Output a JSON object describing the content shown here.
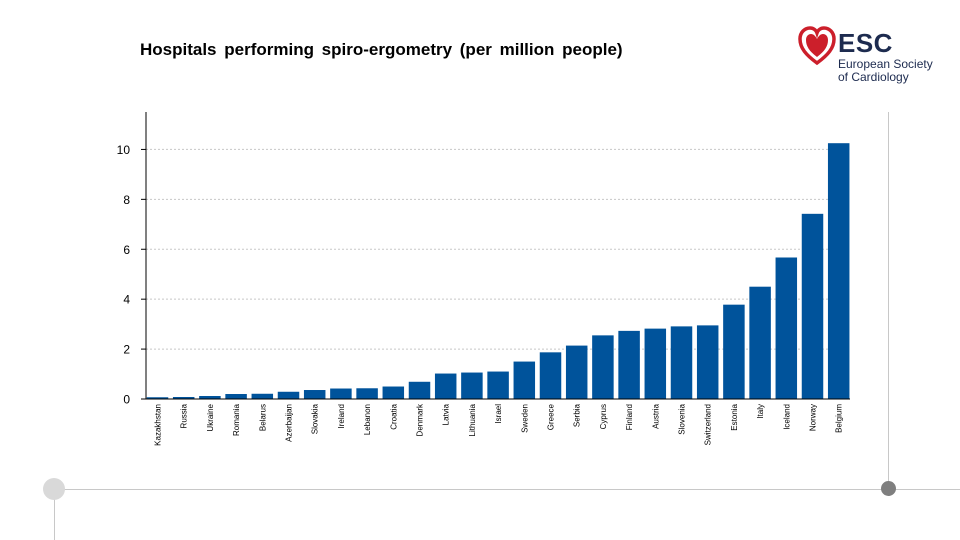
{
  "slide": {
    "title": "Hospitals performing spiro-ergometry (per million people)"
  },
  "logo": {
    "name": "ESC",
    "line1": "European Society",
    "line2": "of Cardiology",
    "color": "#cc1f2b"
  },
  "chart_data": {
    "type": "bar",
    "title": "Hospitals performing spiro-ergometry (per million people)",
    "xlabel": "",
    "ylabel": "",
    "ylim": [
      0,
      11.5
    ],
    "yticks": [
      0,
      2,
      4,
      6,
      8,
      10
    ],
    "grid": true,
    "bar_color": "#00539b",
    "categories": [
      "Kazakhstan",
      "Russia",
      "Ukraine",
      "Romania",
      "Belarus",
      "Azerbaijan",
      "Slovakia",
      "Ireland",
      "Lebanon",
      "Croatia",
      "Denmark",
      "Latvia",
      "Lithuania",
      "Israel",
      "Sweden",
      "Greece",
      "Serbia",
      "Cyprus",
      "Finland",
      "Austria",
      "Slovenia",
      "Switzerland",
      "Estonia",
      "Italy",
      "Iceland",
      "Norway",
      "Belgium"
    ],
    "values": [
      0.07,
      0.08,
      0.12,
      0.2,
      0.21,
      0.29,
      0.36,
      0.42,
      0.43,
      0.5,
      0.69,
      1.02,
      1.06,
      1.1,
      1.5,
      1.87,
      2.14,
      2.55,
      2.73,
      2.82,
      2.91,
      2.95,
      3.78,
      4.5,
      5.67,
      7.42,
      10.25
    ]
  }
}
